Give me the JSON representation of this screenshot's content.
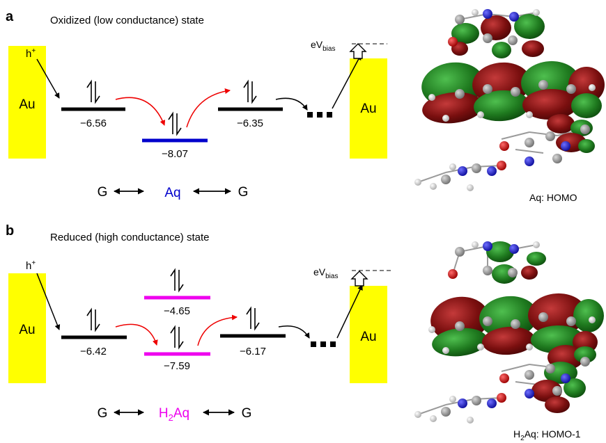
{
  "panel_a": {
    "letter": "a",
    "title": "Oxidized (low conductance) state",
    "electrode_left": "Au",
    "electrode_right": "Au",
    "hole": "h",
    "hole_sup": "+",
    "bias": "eV",
    "bias_sub": "bias",
    "levels": [
      {
        "value": "−6.56",
        "color": "#000000"
      },
      {
        "value": "−8.07",
        "color": "#0000cc"
      },
      {
        "value": "−6.35",
        "color": "#000000"
      }
    ],
    "chain": {
      "left": "G",
      "center": "Aq",
      "right": "G",
      "center_color": "#0000cc"
    },
    "orbital_caption": "Aq: HOMO"
  },
  "panel_b": {
    "letter": "b",
    "title": "Reduced (high conductance) state",
    "electrode_left": "Au",
    "electrode_right": "Au",
    "hole": "h",
    "hole_sup": "+",
    "bias": "eV",
    "bias_sub": "bias",
    "levels": [
      {
        "value": "−6.42",
        "color": "#000000"
      },
      {
        "value": "−4.65",
        "color": "#ee00ee"
      },
      {
        "value": "−7.59",
        "color": "#ee00ee"
      },
      {
        "value": "−6.17",
        "color": "#000000"
      }
    ],
    "chain": {
      "left": "G",
      "center_main": "H",
      "center_sub": "2",
      "center_rest": "Aq",
      "right": "G",
      "center_color": "#ee00ee"
    },
    "orbital_caption_main": "H",
    "orbital_caption_sub": "2",
    "orbital_caption_rest": "Aq: HOMO-1"
  },
  "colors": {
    "gold": "#ffff00",
    "arrow_red": "#ee0000",
    "lobe_red": "#7a0f0f",
    "lobe_green": "#1f7a1f",
    "atom_carbon": "#8c8c8c",
    "atom_nitrogen": "#1a1ad6",
    "atom_oxygen": "#cc0000",
    "atom_hydrogen": "#e6e6e6"
  }
}
